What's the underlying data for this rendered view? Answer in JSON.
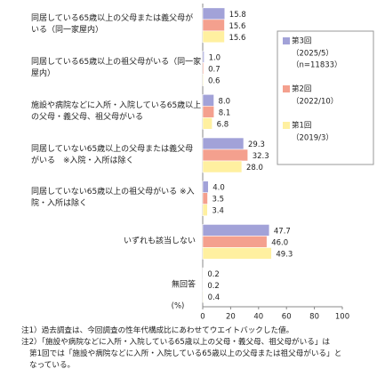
{
  "chart_data": {
    "type": "hbar",
    "categories": [
      "同居している65歳以上の父母または義父母が\nいる（同一家屋内）",
      "同居している65歳以上の祖父母がいる（同一家\n屋内）",
      "施設や病院などに入所・入院している65歳以上\nの父母・義父母、祖父母がいる",
      "同居していない65歳以上の父母または義父母\nがいる　※入院・入所は除く",
      "同居していない65歳以上の祖父母がいる ※入\n院・入所は除く",
      "いずれも該当しない",
      "無回答"
    ],
    "series": [
      {
        "name": "第3回",
        "note": [
          "（2025/5）",
          "（n=11833）"
        ],
        "color": "#a2a2d8",
        "values": [
          15.8,
          1.0,
          8.0,
          29.3,
          4.0,
          47.7,
          0.2
        ],
        "value_labels": [
          "15.8",
          "1.0",
          "8.0",
          "29.3",
          "4.0",
          "47.7",
          "0.2"
        ]
      },
      {
        "name": "第2回",
        "note": [
          "（2022/10）"
        ],
        "color": "#f4a08e",
        "values": [
          15.6,
          0.7,
          8.1,
          32.3,
          3.5,
          46.0,
          0.2
        ],
        "value_labels": [
          "15.6",
          "0.7",
          "8.1",
          "32.3",
          "3.5",
          "46.0",
          "0.2"
        ]
      },
      {
        "name": "第1回",
        "note": [
          "（2019/3）"
        ],
        "color": "#fff0a0",
        "values": [
          15.6,
          0.6,
          6.8,
          28.0,
          3.4,
          49.3,
          0.4
        ],
        "value_labels": [
          "15.6",
          "0.6",
          "6.8",
          "28.0",
          "3.4",
          "49.3",
          "0.4"
        ]
      }
    ],
    "xlim": [
      0,
      100
    ],
    "xticks": [
      0,
      20,
      40,
      60,
      80,
      100
    ],
    "xlabel": "(%)",
    "notes": [
      "注1）過去調査は、今回調査の性年代構成比にあわせてウエイトバックした値。",
      "注2）「施設や病院などに入所・入院している65歳以上の父母・義父母、祖父母がいる」は",
      "第1回では「施設や病院などに入所・入院している65歳以上の父母または祖父母がいる」と",
      "なっている。"
    ]
  }
}
